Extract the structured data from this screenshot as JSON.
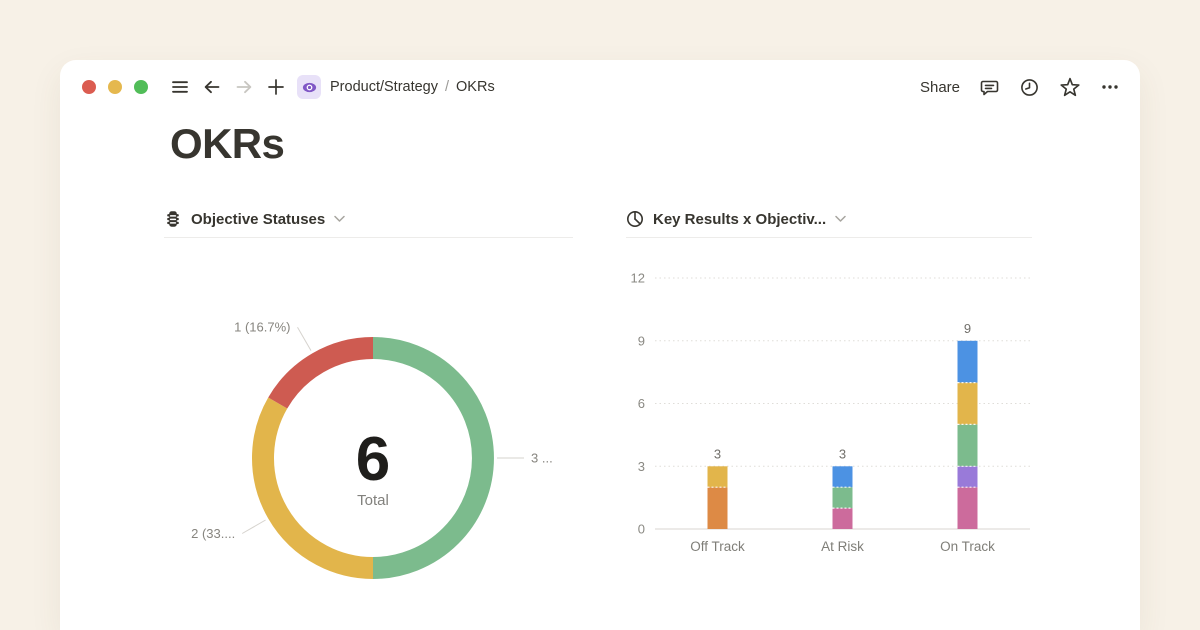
{
  "window": {
    "breadcrumb": {
      "parent": "Product/Strategy",
      "separator": "/",
      "current": "OKRs"
    },
    "toolbar_right": {
      "share_label": "Share"
    }
  },
  "page": {
    "title": "OKRs"
  },
  "icons": {
    "toolbar_left": [
      "window-controls",
      "sidebar-toggle-icon",
      "back-arrow-icon",
      "forward-arrow-icon",
      "plus-icon",
      "eye-page-icon"
    ],
    "toolbar_right": [
      "comment-icon",
      "history-clock-icon",
      "star-icon",
      "ellipsis-icon"
    ],
    "chart_headers": [
      "traffic-light-icon",
      "pie-chart-icon",
      "chevron-down-icon"
    ]
  },
  "colors": {
    "background": "#F7F1E7",
    "card": "#FFFFFF",
    "text_dark": "#37352F",
    "text_gray": "#87857F",
    "status_red": "#CE5B51",
    "status_yellow": "#E2B54B",
    "status_green": "#7CBB8D",
    "bar_orange": "#DD8A45",
    "bar_blue": "#4C92E3",
    "bar_pink": "#CC6B9C",
    "bar_purple": "#997AD9"
  },
  "chart_data": [
    {
      "type": "pie",
      "variant": "donut",
      "title": "Objective Statuses",
      "center_value": "6",
      "center_label": "Total",
      "segments": [
        {
          "value": 3,
          "share_pct": 50.0,
          "color": "#7CBB8D",
          "callout": "3 ..."
        },
        {
          "value": 2,
          "share_pct": 33.3,
          "color": "#E2B54B",
          "callout": "2 (33...."
        },
        {
          "value": 1,
          "share_pct": 16.7,
          "color": "#CE5B51",
          "callout": "1 (16.7%)"
        }
      ],
      "legend_position": "none",
      "start_angle_deg": 0,
      "direction": "clockwise"
    },
    {
      "type": "bar",
      "variant": "stacked-vertical",
      "title": "Key Results x Objectiv...",
      "categories": [
        "Off Track",
        "At Risk",
        "On Track"
      ],
      "y_ticks": [
        0,
        3,
        6,
        9,
        12
      ],
      "ylim": [
        0,
        12
      ],
      "grid": "dotted-horizontal",
      "totals": [
        3,
        3,
        9
      ],
      "stacks": [
        [
          {
            "value": 2,
            "color": "#DD8A45"
          },
          {
            "value": 1,
            "color": "#E2B54B"
          }
        ],
        [
          {
            "value": 1,
            "color": "#CC6B9C"
          },
          {
            "value": 1,
            "color": "#7CBB8D"
          },
          {
            "value": 1,
            "color": "#4C92E3"
          }
        ],
        [
          {
            "value": 2,
            "color": "#CC6B9C"
          },
          {
            "value": 1,
            "color": "#997AD9"
          },
          {
            "value": 2,
            "color": "#7CBB8D"
          },
          {
            "value": 2,
            "color": "#E2B54B"
          },
          {
            "value": 2,
            "color": "#4C92E3"
          }
        ]
      ],
      "xlabel": "",
      "ylabel": ""
    }
  ]
}
